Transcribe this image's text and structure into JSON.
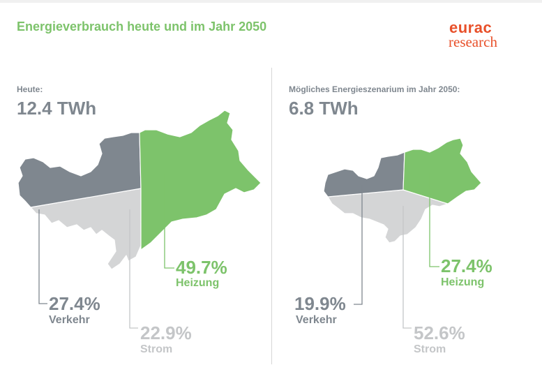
{
  "header": {
    "title": "Energieverbrauch heute und im Jahr 2050",
    "logo_line1": "eurac",
    "logo_line2": "research"
  },
  "colors": {
    "heizung": "#7dc36b",
    "verkehr": "#7f878f",
    "strom": "#d4d5d6",
    "title": "#7dc36b",
    "logo": "#e8502a"
  },
  "chart_data": [
    {
      "type": "pie",
      "label": "Heute:",
      "total": "12.4 TWh",
      "slices": [
        {
          "name": "Heizung",
          "value": 49.7,
          "value_label": "49.7%"
        },
        {
          "name": "Verkehr",
          "value": 27.4,
          "value_label": "27.4%"
        },
        {
          "name": "Strom",
          "value": 22.9,
          "value_label": "22.9%"
        }
      ]
    },
    {
      "type": "pie",
      "label": "Mögliches Energieszenarium im Jahr 2050:",
      "total": "6.8 TWh",
      "slices": [
        {
          "name": "Heizung",
          "value": 27.4,
          "value_label": "27.4%"
        },
        {
          "name": "Verkehr",
          "value": 19.9,
          "value_label": "19.9%"
        },
        {
          "name": "Strom",
          "value": 52.6,
          "value_label": "52.6%"
        }
      ]
    }
  ]
}
